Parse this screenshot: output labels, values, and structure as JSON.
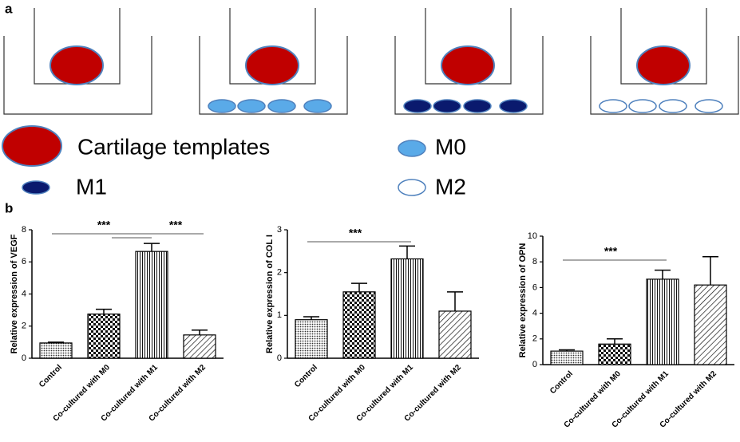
{
  "panel_labels": [
    "a",
    "b"
  ],
  "legend": [
    "Cartilage templates",
    "M0",
    "M1",
    "M2"
  ],
  "chart_data": [
    {
      "type": "bar",
      "ylabel": "Relative expression of  VEGF",
      "categories": [
        "Control",
        "Co-cultured with M0",
        "Co-cultured with M1",
        "Co-cultured with M2"
      ],
      "values": [
        0.95,
        2.75,
        6.65,
        1.45
      ],
      "errors": [
        0.05,
        0.3,
        0.5,
        0.3
      ],
      "ylim": [
        0,
        8
      ],
      "yticks": [
        0,
        2,
        4,
        6,
        8
      ],
      "annotations": [
        "***",
        "***"
      ]
    },
    {
      "type": "bar",
      "ylabel": "Relative expression of COL I",
      "categories": [
        "Control",
        "Co-cultured with M0",
        "Co-cultured with M1",
        "Co-cultured with M2"
      ],
      "values": [
        0.9,
        1.55,
        2.32,
        1.1
      ],
      "errors": [
        0.07,
        0.2,
        0.3,
        0.45
      ],
      "ylim": [
        0,
        3
      ],
      "yticks": [
        0,
        1,
        2,
        3
      ],
      "annotations": [
        "***"
      ]
    },
    {
      "type": "bar",
      "ylabel": "Relative expression of  OPN",
      "categories": [
        "Control",
        "Co-cultured with M0",
        "Co-cultured with M1",
        "Co-cultured with M2"
      ],
      "values": [
        1.05,
        1.6,
        6.65,
        6.2
      ],
      "errors": [
        0.1,
        0.4,
        0.7,
        2.2
      ],
      "ylim": [
        0,
        10
      ],
      "yticks": [
        0,
        2,
        4,
        6,
        8,
        10
      ],
      "annotations": [
        "***"
      ]
    }
  ]
}
